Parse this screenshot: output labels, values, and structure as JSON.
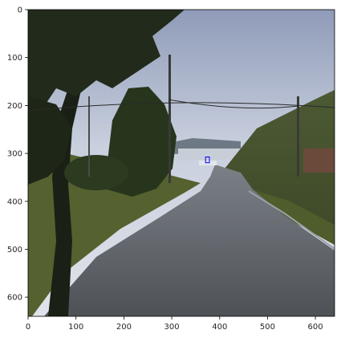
{
  "plot": {
    "x_ticks": [
      "0",
      "100",
      "200",
      "300",
      "400",
      "500",
      "600"
    ],
    "y_ticks": [
      "0",
      "100",
      "200",
      "300",
      "400",
      "500",
      "600"
    ],
    "image_size": [
      640,
      640
    ],
    "annotation_box": {
      "x": 370,
      "y": 305,
      "width": 8,
      "height": 12,
      "color": "#0000ff"
    }
  },
  "scene": {
    "description_colors": {
      "sky": "#b9c3d6",
      "road": "#5c6166",
      "grass": "#4f5a2c",
      "tree": "#1f2818"
    }
  }
}
